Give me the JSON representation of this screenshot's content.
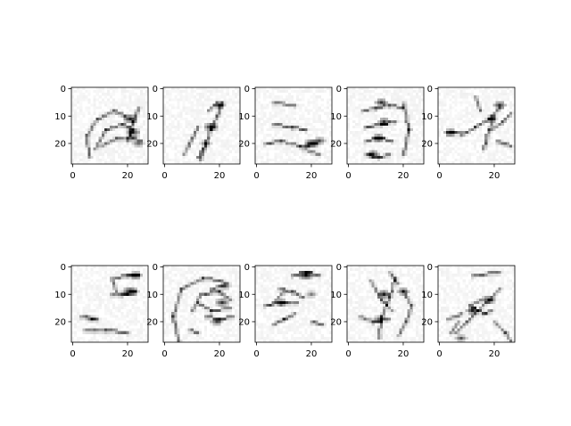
{
  "chart_data": {
    "type": "heatmap",
    "description_grid": "2 rows x 5 columns of 28x28 grayscale filter visualizations (gray_r colormap)",
    "colormap": {
      "low": "#ffffff",
      "high": "#000000"
    },
    "x_ticks": [
      "0",
      "20"
    ],
    "y_ticks": [
      "0",
      "10",
      "20"
    ],
    "xlim": [
      -0.5,
      27.5
    ],
    "ylim": [
      27.5,
      -0.5
    ],
    "panels": [
      {
        "strokes": [
          [
            [
              6,
              25
            ],
            [
              5,
              17
            ],
            [
              9,
              11
            ],
            [
              15,
              8
            ],
            [
              19,
              10
            ]
          ],
          [
            [
              8,
              22
            ],
            [
              12,
              15
            ],
            [
              18,
              13
            ],
            [
              22,
              15
            ]
          ],
          [
            [
              10,
              21
            ],
            [
              16,
              18
            ],
            [
              22,
              18
            ],
            [
              25,
              19
            ]
          ],
          [
            [
              20,
              19
            ],
            [
              22,
              12
            ],
            [
              24,
              7
            ]
          ]
        ],
        "blobs": [
          [
            21,
            11,
            1.6,
            0.85
          ],
          [
            22,
            16,
            1.6,
            0.8
          ],
          [
            24,
            20,
            1.3,
            0.55
          ]
        ]
      },
      {
        "strokes": [
          [
            [
              13,
              26
            ],
            [
              15,
              20
            ],
            [
              17,
              14
            ],
            [
              19,
              10
            ],
            [
              21,
              5
            ]
          ],
          [
            [
              7,
              24
            ],
            [
              10,
              18
            ],
            [
              12,
              14
            ]
          ],
          [
            [
              16,
              8
            ],
            [
              19,
              5
            ]
          ],
          [
            [
              12,
              25
            ],
            [
              14,
              22
            ]
          ]
        ],
        "blobs": [
          [
            17,
            14,
            1.6,
            0.9
          ],
          [
            20,
            6,
            1.3,
            0.75
          ],
          [
            15,
            20,
            1.2,
            0.55
          ]
        ]
      },
      {
        "strokes": [
          [
            [
              6,
              13
            ],
            [
              13,
              14
            ],
            [
              18,
              15
            ]
          ],
          [
            [
              3,
              20
            ],
            [
              9,
              19
            ],
            [
              16,
              21
            ],
            [
              22,
              20
            ]
          ],
          [
            [
              6,
              5
            ],
            [
              14,
              6
            ]
          ],
          [
            [
              17,
              22
            ],
            [
              23,
              24
            ]
          ]
        ],
        "blobs": [
          [
            20,
            20,
            1.6,
            0.95
          ],
          [
            23,
            19,
            1.2,
            0.7
          ]
        ]
      },
      {
        "strokes": [
          [
            [
              5,
              8
            ],
            [
              10,
              7
            ],
            [
              15,
              6
            ],
            [
              20,
              7
            ]
          ],
          [
            [
              6,
              14
            ],
            [
              12,
              13
            ],
            [
              17,
              12
            ]
          ],
          [
            [
              6,
              19
            ],
            [
              11,
              18
            ],
            [
              16,
              19
            ]
          ],
          [
            [
              6,
              24
            ],
            [
              11,
              25
            ],
            [
              15,
              24
            ]
          ],
          [
            [
              20,
              5
            ],
            [
              22,
              15
            ],
            [
              20,
              24
            ]
          ]
        ],
        "blobs": [
          [
            12,
            5,
            1.4,
            0.8
          ],
          [
            13,
            12,
            1.4,
            0.75
          ],
          [
            11,
            18,
            1.3,
            0.85
          ],
          [
            9,
            24,
            1.3,
            0.8
          ]
        ]
      },
      {
        "strokes": [
          [
            [
              8,
              17
            ],
            [
              13,
              14
            ],
            [
              18,
              11
            ],
            [
              22,
              7
            ]
          ],
          [
            [
              16,
              22
            ],
            [
              18,
              15
            ],
            [
              20,
              10
            ]
          ],
          [
            [
              3,
              16
            ],
            [
              8,
              16
            ]
          ],
          [
            [
              19,
              15
            ],
            [
              23,
              12
            ],
            [
              26,
              9
            ]
          ],
          [
            [
              21,
              19
            ],
            [
              26,
              21
            ]
          ],
          [
            [
              13,
              3
            ],
            [
              15,
              8
            ]
          ]
        ],
        "blobs": [
          [
            4,
            16,
            1.3,
            0.8
          ],
          [
            22,
            6,
            1.4,
            0.8
          ],
          [
            19,
            11,
            1.2,
            0.6
          ]
        ]
      },
      {
        "strokes": [
          [
            [
              14,
              10
            ],
            [
              18,
              10
            ],
            [
              23,
              9
            ]
          ],
          [
            [
              15,
              4
            ],
            [
              20,
              3
            ],
            [
              24,
              3
            ]
          ],
          [
            [
              3,
              18
            ],
            [
              9,
              19
            ]
          ],
          [
            [
              4,
              23
            ],
            [
              12,
              23
            ],
            [
              20,
              24
            ]
          ],
          [
            [
              14,
              4
            ],
            [
              16,
              9
            ]
          ]
        ],
        "blobs": [
          [
            21,
            9,
            1.8,
            0.95
          ],
          [
            23,
            3,
            1.2,
            0.75
          ],
          [
            7,
            19,
            1.2,
            0.4
          ]
        ]
      },
      {
        "strokes": [
          [
            [
              5,
              27
            ],
            [
              3,
              18
            ],
            [
              6,
              8
            ],
            [
              14,
              4
            ],
            [
              21,
              5
            ]
          ],
          [
            [
              10,
              16
            ],
            [
              13,
              10
            ],
            [
              20,
              9
            ],
            [
              24,
              12
            ]
          ],
          [
            [
              12,
              13
            ],
            [
              17,
              16
            ],
            [
              24,
              15
            ]
          ],
          [
            [
              15,
              18
            ],
            [
              20,
              19
            ],
            [
              25,
              18
            ]
          ],
          [
            [
              17,
              8
            ],
            [
              23,
              6
            ]
          ],
          [
            [
              9,
              23
            ],
            [
              12,
              24
            ]
          ]
        ],
        "blobs": [
          [
            21,
            13,
            1.5,
            0.8
          ],
          [
            19,
            20,
            1.3,
            0.7
          ],
          [
            22,
            7,
            1.2,
            0.6
          ]
        ]
      },
      {
        "strokes": [
          [
            [
              13,
              3
            ],
            [
              18,
              2
            ],
            [
              23,
              3
            ]
          ],
          [
            [
              8,
              8
            ],
            [
              13,
              9
            ],
            [
              17,
              11
            ]
          ],
          [
            [
              3,
              14
            ],
            [
              9,
              13
            ],
            [
              15,
              13
            ]
          ],
          [
            [
              6,
              21
            ],
            [
              10,
              19
            ],
            [
              14,
              17
            ]
          ],
          [
            [
              20,
              20
            ],
            [
              24,
              21
            ]
          ],
          [
            [
              10,
              9
            ],
            [
              6,
              13
            ]
          ]
        ],
        "blobs": [
          [
            18,
            3,
            1.6,
            0.95
          ],
          [
            9,
            13,
            1.3,
            0.7
          ],
          [
            20,
            10,
            1.2,
            0.45
          ]
        ]
      },
      {
        "strokes": [
          [
            [
              8,
              5
            ],
            [
              12,
              12
            ],
            [
              16,
              16
            ]
          ],
          [
            [
              17,
              4
            ],
            [
              15,
              11
            ],
            [
              12,
              18
            ],
            [
              11,
              26
            ]
          ],
          [
            [
              4,
              18
            ],
            [
              9,
              20
            ],
            [
              15,
              19
            ]
          ],
          [
            [
              20,
              9
            ],
            [
              23,
              14
            ],
            [
              21,
              20
            ],
            [
              18,
              25
            ]
          ],
          [
            [
              15,
              2
            ],
            [
              18,
              6
            ]
          ]
        ],
        "blobs": [
          [
            13,
            10,
            1.4,
            0.85
          ],
          [
            20,
            9,
            1.3,
            0.75
          ],
          [
            11,
            19,
            1.2,
            0.55
          ]
        ]
      },
      {
        "strokes": [
          [
            [
              6,
              24
            ],
            [
              10,
              20
            ],
            [
              14,
              16
            ],
            [
              18,
              12
            ],
            [
              22,
              8
            ]
          ],
          [
            [
              15,
              12
            ],
            [
              11,
              14
            ],
            [
              16,
              17
            ],
            [
              19,
              16
            ]
          ],
          [
            [
              3,
              19
            ],
            [
              8,
              17
            ]
          ],
          [
            [
              4,
              24
            ],
            [
              7,
              20
            ]
          ],
          [
            [
              20,
              20
            ],
            [
              24,
              24
            ],
            [
              26,
              27
            ]
          ],
          [
            [
              12,
              3
            ],
            [
              22,
              2
            ]
          ]
        ],
        "blobs": [
          [
            18,
            12,
            1.5,
            0.9
          ],
          [
            12,
            16,
            1.4,
            0.85
          ],
          [
            8,
            26,
            1.2,
            0.65
          ]
        ]
      }
    ]
  }
}
